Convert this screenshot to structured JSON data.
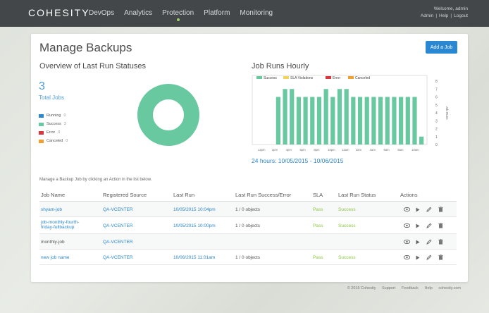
{
  "brand": {
    "logo": "COHESITY"
  },
  "nav": [
    {
      "label": "DevOps",
      "active": false
    },
    {
      "label": "Analytics",
      "active": false
    },
    {
      "label": "Protection",
      "active": true
    },
    {
      "label": "Platform",
      "active": false
    },
    {
      "label": "Monitoring",
      "active": false
    }
  ],
  "user": {
    "welcome": "Welcome, admin",
    "links": [
      "Admin",
      "Help",
      "Logout"
    ]
  },
  "page": {
    "title": "Manage Backups",
    "add_button": "Add a Job"
  },
  "overview": {
    "title": "Overview of Last Run Statuses",
    "total_count": "3",
    "total_label": "Total Jobs",
    "legend": [
      {
        "label": "Running",
        "count": "0",
        "color": "#2a87d1"
      },
      {
        "label": "Success",
        "count": "3",
        "color": "#68c8a0"
      },
      {
        "label": "Error",
        "count": "0",
        "color": "#d9363e"
      },
      {
        "label": "Canceled",
        "count": "0",
        "color": "#f0a030"
      }
    ]
  },
  "chart_data": {
    "type": "bar",
    "title": "Job Runs Hourly",
    "legend": [
      {
        "name": "Success",
        "color": "#68c8a0"
      },
      {
        "name": "SLA Violations",
        "color": "#f3d35a"
      },
      {
        "name": "Error",
        "color": "#d9363e"
      },
      {
        "name": "Canceled",
        "color": "#f0a030"
      }
    ],
    "x_tick_labels": [
      "12pm",
      "2pm",
      "4pm",
      "6pm",
      "8pm",
      "10pm",
      "12am",
      "2am",
      "4am",
      "6am",
      "8am",
      "10am"
    ],
    "y_ticks": [
      0,
      1,
      2,
      3,
      4,
      5,
      6,
      7,
      8
    ],
    "ylabel": "Job Runs",
    "ylim": [
      0,
      8
    ],
    "values": [
      0,
      0,
      0,
      6,
      7,
      7,
      6,
      6,
      6,
      6,
      7,
      6,
      7,
      7,
      6,
      6,
      6,
      6,
      6,
      6,
      6,
      6,
      6,
      6,
      1
    ],
    "color": "#68c8a0",
    "range_label": "24 hours: 10/05/2015 - 10/06/2015"
  },
  "jobs": {
    "hint": "Manage a Backup Job by clicking an Action in the list below.",
    "columns": [
      "Job Name",
      "Registered Source",
      "Last Run",
      "Last Run Success/Error",
      "SLA",
      "Last Run Status",
      "Actions"
    ],
    "rows": [
      {
        "name": "shyam-job",
        "source": "QA-VCENTER",
        "last_run": "10/05/2015 10:04pm",
        "objects": "1 / 0 objects",
        "sla": "Pass",
        "status": "Success"
      },
      {
        "name": "job-monthly-fourth-friday-fullbackup",
        "source": "QA-VCENTER",
        "last_run": "10/05/2015 10:00pm",
        "objects": "1 / 0 objects",
        "sla": "Pass",
        "status": "Success"
      },
      {
        "name": "monthly-job",
        "source": "QA-VCENTER",
        "last_run": "",
        "objects": "",
        "sla": "",
        "status": ""
      },
      {
        "name": "new job name",
        "source": "QA-VCENTER",
        "last_run": "10/06/2015 11:01am",
        "objects": "1 / 0 objects",
        "sla": "Pass",
        "status": "Success"
      }
    ],
    "action_icons": [
      "eye-icon",
      "play-icon",
      "pencil-icon",
      "trash-icon"
    ]
  },
  "footer": {
    "copyright": "© 2015 Cohesity",
    "links": [
      "Support",
      "Feedback",
      "Help",
      "cohesity.com"
    ]
  }
}
